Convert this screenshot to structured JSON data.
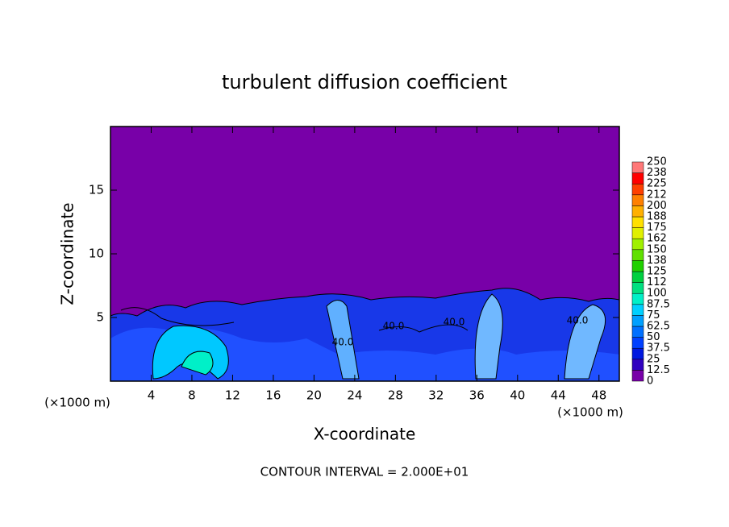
{
  "chart_data": {
    "type": "contour",
    "title": "turbulent diffusion coefficient",
    "xlabel": "X-coordinate",
    "ylabel": "Z-coordinate",
    "unit_label": "(×1000 m)",
    "footnote": "CONTOUR INTERVAL = 2.000E+01",
    "xlim": [
      0,
      50
    ],
    "ylim": [
      0,
      20
    ],
    "xticks": [
      4,
      8,
      12,
      16,
      20,
      24,
      28,
      32,
      36,
      40,
      44,
      48
    ],
    "yticks": [
      5,
      10,
      15
    ],
    "contour_labels": [
      "40.0",
      "40.0",
      "40.0",
      "40.0"
    ],
    "colorbar": {
      "levels": [
        0,
        12.5,
        25,
        37.5,
        50,
        62.5,
        75,
        87.5,
        100,
        {
          "value": 112.5,
          "label": "112"
        },
        125,
        {
          "value": 137.5,
          "label": "138"
        },
        150,
        {
          "value": 162.5,
          "label": "162"
        },
        175,
        {
          "value": 187.5,
          "label": "188"
        },
        200,
        {
          "value": 212.5,
          "label": "212"
        },
        225,
        {
          "value": 237.5,
          "label": "238"
        },
        250
      ],
      "colors": [
        "#7800a8",
        "#3000c0",
        "#0018e0",
        "#0040ff",
        "#0070ff",
        "#00a0ff",
        "#00d0ff",
        "#00f0c8",
        "#00e080",
        "#00d040",
        "#20d000",
        "#60e000",
        "#a0f000",
        "#e0f000",
        "#ffe000",
        "#ffb000",
        "#ff8000",
        "#ff4000",
        "#ff0000",
        "#ff7878"
      ]
    }
  }
}
